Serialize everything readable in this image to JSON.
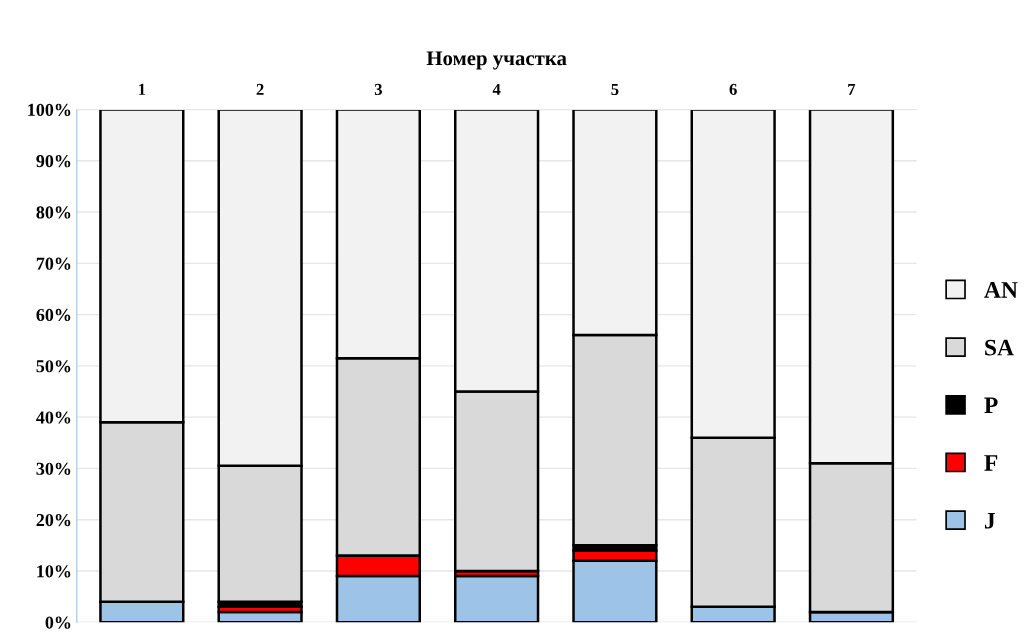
{
  "chart_data": {
    "type": "bar",
    "stacked": true,
    "title": "Номер участка",
    "categories": [
      "1",
      "2",
      "3",
      "4",
      "5",
      "6",
      "7"
    ],
    "series": [
      {
        "name": "J",
        "color": "#9dc3e6",
        "values": [
          4,
          2,
          9,
          9,
          12,
          3,
          2
        ]
      },
      {
        "name": "F",
        "color": "#ff0000",
        "values": [
          0,
          1,
          4,
          1,
          2,
          0,
          0
        ]
      },
      {
        "name": "P",
        "color": "#000000",
        "values": [
          0,
          1,
          0,
          0,
          1,
          0,
          0
        ]
      },
      {
        "name": "SA",
        "color": "#d9d9d9",
        "values": [
          35,
          26.5,
          38.5,
          35,
          41,
          33,
          29
        ]
      },
      {
        "name": "AN",
        "color": "#f2f2f2",
        "values": [
          61,
          69.5,
          48.5,
          55,
          44,
          64,
          69
        ]
      }
    ],
    "ylim": [
      0,
      100
    ],
    "yticks": [
      {
        "value": 0,
        "label": "0%"
      },
      {
        "value": 10,
        "label": "10%"
      },
      {
        "value": 20,
        "label": "20%"
      },
      {
        "value": 30,
        "label": "30%"
      },
      {
        "value": 40,
        "label": "40%"
      },
      {
        "value": 50,
        "label": "50%"
      },
      {
        "value": 60,
        "label": "60%"
      },
      {
        "value": 70,
        "label": "70%"
      },
      {
        "value": 80,
        "label": "80%"
      },
      {
        "value": 90,
        "label": "90%"
      },
      {
        "value": 100,
        "label": "100%"
      }
    ],
    "grid": "y",
    "legend": "right"
  }
}
